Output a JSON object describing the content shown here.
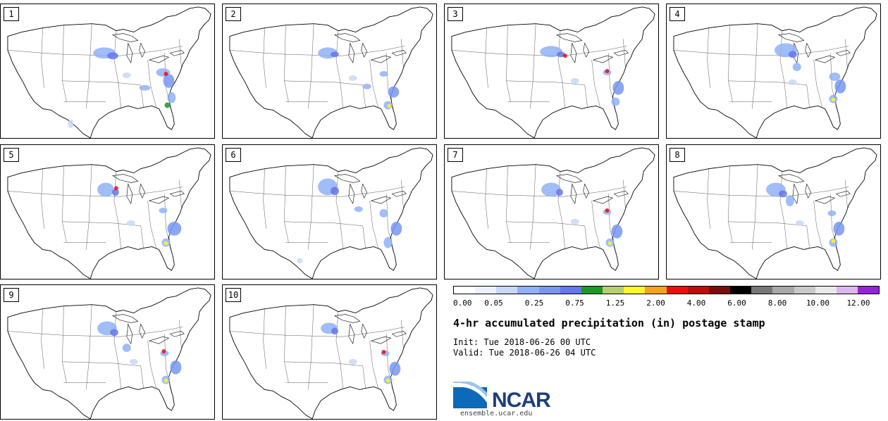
{
  "panels": [
    {
      "label": "1"
    },
    {
      "label": "2"
    },
    {
      "label": "3"
    },
    {
      "label": "4"
    },
    {
      "label": "5"
    },
    {
      "label": "6"
    },
    {
      "label": "7"
    },
    {
      "label": "8"
    },
    {
      "label": "9"
    },
    {
      "label": "10"
    }
  ],
  "legend": {
    "colors": [
      "#ffffff",
      "#eaf1fc",
      "#c8d8f8",
      "#8fb2f7",
      "#7897f5",
      "#6576ee",
      "#159b26",
      "#b5cf6d",
      "#fdf62a",
      "#f9a31c",
      "#ee0d0d",
      "#bf0b0b",
      "#7d0b0b",
      "#000000",
      "#777777",
      "#a8a8a8",
      "#c9c9c9",
      "#e9e9e9",
      "#ddb5f2",
      "#9822d9"
    ],
    "tick_labels": [
      "0.00",
      "0.05",
      "0.25",
      "0.75",
      "1.25",
      "2.00",
      "4.00",
      "6.00",
      "8.00",
      "10.00",
      "12.00"
    ]
  },
  "title": "4-hr accumulated precipitation (in) postage stamp",
  "init": "Init: Tue 2018-06-26 00 UTC",
  "valid": "Valid: Tue 2018-06-26 04 UTC",
  "logo": {
    "name": "NCAR",
    "url": "ensemble.ucar.edu",
    "icon": "ncar-swoosh-icon"
  }
}
